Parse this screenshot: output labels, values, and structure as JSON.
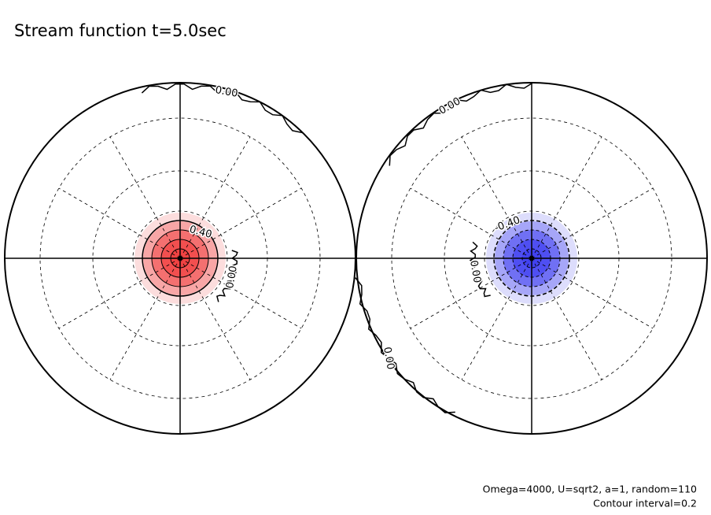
{
  "chart_data": {
    "type": "polar-contour",
    "title": "Stream function t=5.0sec",
    "annotations": [
      "Omega=4000, U=sqrt2, a=1, random=110",
      "Contour interval=0.2"
    ],
    "panels": [
      {
        "color": "#f04040",
        "levels": [
          {
            "value": 0,
            "label": "0.00"
          },
          {
            "value": 0.4,
            "label": "0.40"
          },
          {
            "value": 0,
            "label": "0.00"
          }
        ]
      },
      {
        "color": "#4040f0",
        "levels": [
          {
            "value": 0,
            "label": "0.00"
          },
          {
            "value": -0.4,
            "label": "-0.40"
          },
          {
            "value": 0,
            "label": "0.00"
          },
          {
            "value": 0,
            "label": "0.00"
          }
        ]
      }
    ]
  }
}
